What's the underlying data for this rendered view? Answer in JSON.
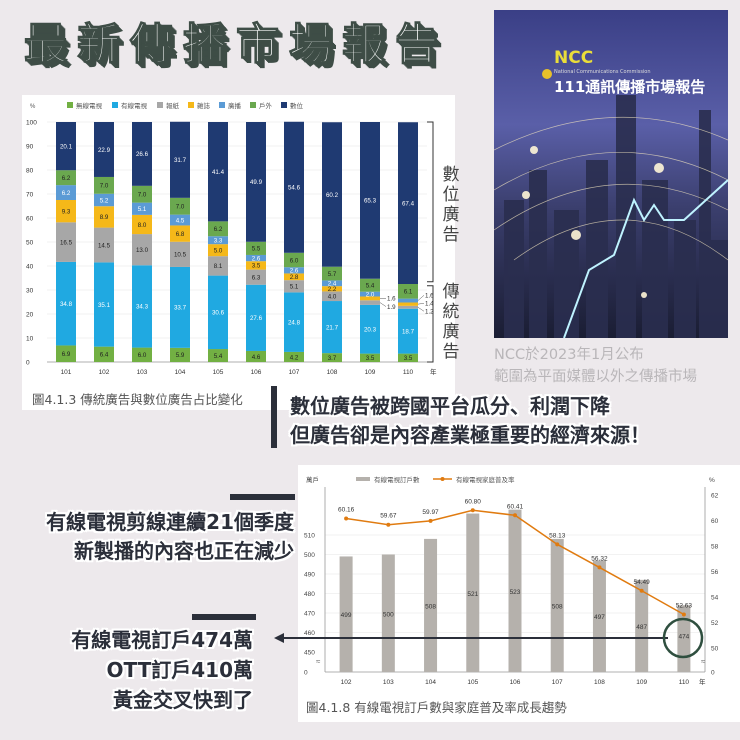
{
  "title": "最新傳播市場報告",
  "cover": {
    "logo": "NCC",
    "org": "National Communications Commission",
    "report_title": "111通訊傳播市場報告",
    "caption_line1": "NCC於2023年1月公布",
    "caption_line2": "範圍為平面媒體以外之傳播市場"
  },
  "callouts": {
    "ad_line1": "數位廣告被跨國平台瓜分、利潤下降",
    "ad_line2": "但廣告卻是內容產業極重要的經濟來源！",
    "cable_line1": "有線電視剪線連續21個季度",
    "cable_line2": "新製播的內容也正在減少",
    "sub_line1": "有線電視訂戶474萬",
    "sub_line2": "OTT訂戶410萬",
    "sub_line3": "黃金交叉快到了"
  },
  "colors": {
    "accent_dark": "#2b2f3a",
    "circle": "#2f4f3f",
    "line_orange": "#e07b10",
    "bar_gray": "#b5b1ac"
  },
  "chart_data": [
    {
      "type": "bar",
      "stacked": true,
      "caption": "圖4.1.3 傳統廣告與數位廣告占比變化",
      "ylabel": "%",
      "xunit": "年",
      "ylim": [
        0,
        100
      ],
      "yticks": [
        "0",
        "10",
        "20",
        "30",
        "40",
        "50",
        "60",
        "70",
        "80",
        "90",
        "100"
      ],
      "grid": true,
      "legend_position": "top",
      "bracket_labels": {
        "digital": "數位廣告",
        "traditional": "傳統廣告"
      },
      "categories": [
        "101",
        "102",
        "103",
        "104",
        "105",
        "106",
        "107",
        "108",
        "109",
        "110"
      ],
      "series": [
        {
          "name": "無線電視",
          "color": "#72b043",
          "values": [
            6.9,
            6.4,
            6.0,
            5.9,
            5.4,
            4.6,
            4.2,
            3.7,
            3.5,
            3.5
          ]
        },
        {
          "name": "有線電視",
          "color": "#20a9e1",
          "values": [
            34.8,
            35.1,
            34.3,
            33.7,
            30.6,
            27.6,
            24.8,
            21.7,
            20.3,
            18.7
          ]
        },
        {
          "name": "報紙",
          "color": "#a7a7a7",
          "values": [
            16.5,
            14.5,
            13.0,
            10.5,
            8.1,
            6.3,
            5.1,
            4.0,
            1.9,
            1.2
          ]
        },
        {
          "name": "雜誌",
          "color": "#f5b819",
          "values": [
            9.3,
            8.9,
            8.0,
            6.8,
            5.0,
            3.5,
            2.8,
            2.2,
            1.6,
            1.4
          ]
        },
        {
          "name": "廣播",
          "color": "#5b9bd5",
          "values": [
            6.2,
            5.2,
            5.1,
            4.5,
            3.3,
            2.6,
            2.6,
            2.4,
            2.0,
            1.6
          ]
        },
        {
          "name": "戶外",
          "color": "#6aa84f",
          "values": [
            6.2,
            7.0,
            7.0,
            7.0,
            6.2,
            5.5,
            6.0,
            5.7,
            5.4,
            6.1
          ]
        },
        {
          "name": "數位",
          "color": "#1f3a72",
          "values": [
            20.1,
            22.9,
            26.6,
            31.7,
            41.4,
            49.9,
            54.6,
            60.2,
            65.3,
            67.4
          ]
        }
      ]
    },
    {
      "type": "bar+line",
      "caption": "圖4.1.8 有線電視訂戶數與家庭普及率成長趨勢",
      "ylabel_left": "萬戶",
      "ylabel_right": "%",
      "xunit": "年",
      "ylim_left": [
        450,
        515
      ],
      "yticks_left": [
        "0",
        "450",
        "460",
        "470",
        "480",
        "490",
        "500",
        "510"
      ],
      "ylim_right": [
        50,
        62
      ],
      "yticks_right": [
        "0",
        "50",
        "52",
        "54",
        "56",
        "58",
        "60",
        "62"
      ],
      "axis_break": true,
      "legend_position": "top",
      "categories": [
        "102",
        "103",
        "104",
        "105",
        "106",
        "107",
        "108",
        "109",
        "110"
      ],
      "series": [
        {
          "name": "有線電視訂戶數",
          "type": "bar",
          "color": "#b5b1ac",
          "values": [
            499,
            500,
            508,
            521,
            523,
            508,
            497,
            487,
            474
          ]
        },
        {
          "name": "有線電視家庭普及率",
          "type": "line",
          "color": "#e07b10",
          "values": [
            60.16,
            59.67,
            59.97,
            60.8,
            60.41,
            58.13,
            56.32,
            54.49,
            52.63
          ]
        }
      ],
      "highlight": "474"
    }
  ]
}
